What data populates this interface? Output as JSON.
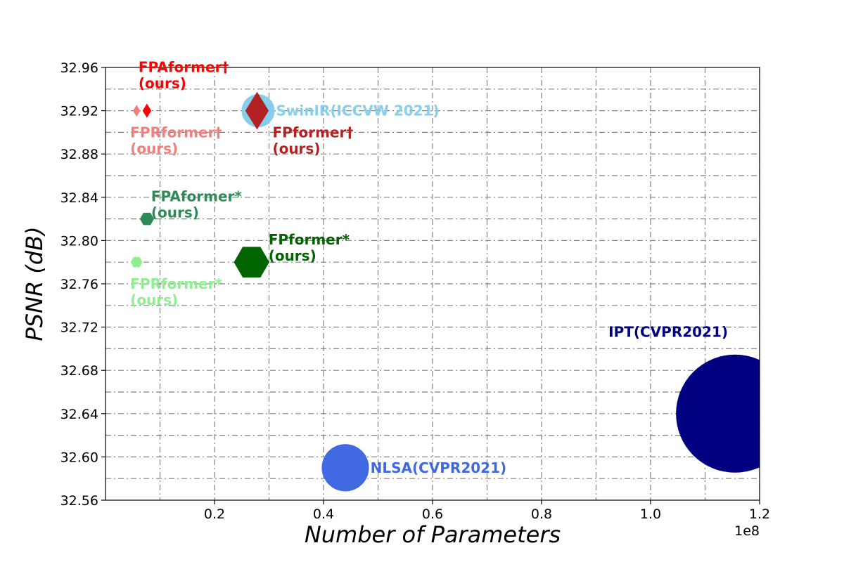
{
  "chart_data": {
    "type": "scatter",
    "title": "",
    "xlabel": "Number of Parameters",
    "ylabel": "PSNR (dB)",
    "x_offset_label": "1e8",
    "xlim": [
      0,
      1.2
    ],
    "ylim": [
      32.56,
      32.96
    ],
    "x_ticks": [
      0.2,
      0.4,
      0.6,
      0.8,
      1.0,
      1.2
    ],
    "x_tick_labels": [
      "0.2",
      "0.4",
      "0.6",
      "0.8",
      "1.0",
      "1.2"
    ],
    "y_ticks": [
      32.56,
      32.6,
      32.64,
      32.68,
      32.72,
      32.76,
      32.8,
      32.84,
      32.88,
      32.92,
      32.96
    ],
    "y_tick_labels": [
      "32.56",
      "32.60",
      "32.64",
      "32.68",
      "32.72",
      "32.76",
      "32.80",
      "32.84",
      "32.88",
      "32.92",
      "32.96"
    ],
    "grid": true,
    "points": [
      {
        "id": "ipt",
        "x": 1.155,
        "y": 32.64,
        "marker": "circle",
        "color": "#000080",
        "label_lines": [
          "IPT(CVPR2021)"
        ],
        "label_anchor": "above-left",
        "size": 1.0
      },
      {
        "id": "nlsa",
        "x": 0.44,
        "y": 32.59,
        "marker": "circle",
        "color": "#4169e1",
        "label_lines": [
          "NLSA(CVPR2021)"
        ],
        "label_anchor": "right",
        "size": 0.4
      },
      {
        "id": "swinir",
        "x": 0.28,
        "y": 32.92,
        "marker": "circle",
        "color": "#87ceeb",
        "label_lines": [
          "SwinIR(ICCVW 2021)"
        ],
        "label_anchor": "right",
        "size": 0.28
      },
      {
        "id": "fpformer-dagger",
        "x": 0.278,
        "y": 32.92,
        "marker": "diamond",
        "color": "#b22222",
        "label_lines": [
          "FPformer†",
          "(ours)"
        ],
        "label_anchor": "below-right",
        "size": 0.32
      },
      {
        "id": "fpaformer-dagger",
        "x": 0.076,
        "y": 32.92,
        "marker": "diamond",
        "color": "#ff0000",
        "label_lines": [
          "FPAformer†",
          "(ours)"
        ],
        "label_anchor": "above-right",
        "size": 0.12
      },
      {
        "id": "fprformer-dagger",
        "x": 0.057,
        "y": 32.92,
        "marker": "diamond",
        "color": "#f08080",
        "label_lines": [
          "FPRformer†",
          "(ours)"
        ],
        "label_anchor": "below",
        "size": 0.1
      },
      {
        "id": "fpaformer-star",
        "x": 0.076,
        "y": 32.82,
        "marker": "hexagon",
        "color": "#2e8b57",
        "label_lines": [
          "FPAformer*",
          "(ours)"
        ],
        "label_anchor": "above-right",
        "size": 0.12
      },
      {
        "id": "fpformer-star",
        "x": 0.268,
        "y": 32.78,
        "marker": "hexagon",
        "color": "#006400",
        "label_lines": [
          "FPformer*",
          "(ours)"
        ],
        "label_anchor": "above-right",
        "size": 0.3
      },
      {
        "id": "fprformer-star",
        "x": 0.057,
        "y": 32.78,
        "marker": "hexagon",
        "color": "#90ee90",
        "label_lines": [
          "FPRformer*",
          "(ours)"
        ],
        "label_anchor": "below",
        "size": 0.1
      }
    ]
  }
}
